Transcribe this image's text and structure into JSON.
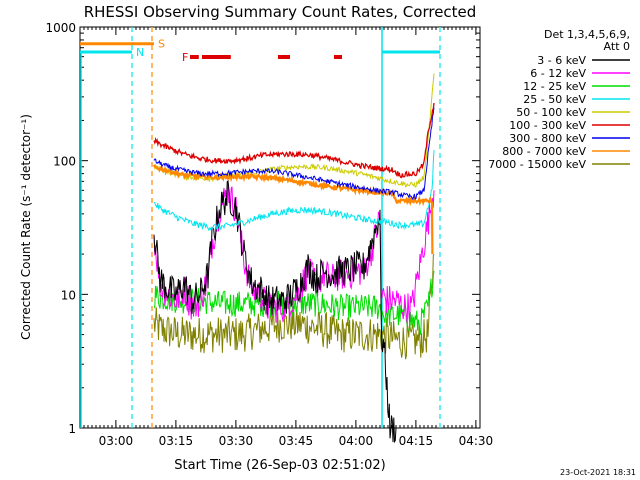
{
  "chart_data": {
    "type": "line",
    "title": "RHESSI Observing Summary Count Rates, Corrected",
    "xlabel": "Start Time (26-Sep-03 02:51:02)",
    "ylabel": "Corrected Count Rate (s⁻¹ detector⁻¹)",
    "yscale": "log",
    "ylim": [
      1,
      1000
    ],
    "xlim_minutes": [
      0,
      100
    ],
    "x_tick_labels": [
      "03:00",
      "03:15",
      "03:30",
      "03:45",
      "04:00",
      "04:15",
      "04:30"
    ],
    "x_ticks_minutes": [
      8.97,
      23.97,
      38.97,
      53.97,
      68.97,
      83.97,
      98.97
    ],
    "y_tick_labels": [
      "1",
      "10",
      "100",
      "1000"
    ],
    "y_ticks": [
      1,
      10,
      100,
      1000
    ],
    "legend_header": [
      "Det 1,3,4,5,6,9,",
      "Att 0"
    ],
    "legend_placement": "right",
    "timestamp": "23-Oct-2021 18:31",
    "colors": {
      "3-6": "#000000",
      "6-12": "#ff00ff",
      "12-25": "#00dd00",
      "25-50": "#00e5ee",
      "50-100": "#cccc00",
      "100-300": "#dd0000",
      "300-800": "#0000ee",
      "800-7000": "#ff8800",
      "7000-15000": "#808000"
    },
    "series": [
      {
        "name": "3 - 6 keV",
        "color_key": "3-6",
        "x": [
          18.5,
          20,
          22,
          24,
          26,
          28,
          30,
          32,
          33,
          35,
          37,
          39,
          41,
          43,
          45,
          47,
          49,
          51,
          53,
          55,
          57,
          59,
          61,
          63,
          65,
          67,
          69,
          71,
          73,
          75,
          75.3,
          76,
          77.5,
          79
        ],
        "y": [
          30,
          13,
          11,
          10,
          12,
          9,
          10,
          14,
          25,
          45,
          55,
          45,
          20,
          12,
          11,
          9,
          9,
          9,
          10,
          12,
          16,
          13,
          15,
          14,
          15,
          15,
          16,
          16,
          25,
          40,
          5,
          4,
          1,
          1
        ]
      },
      {
        "name": "6 - 12 keV",
        "color_key": "6-12",
        "x": [
          18.5,
          20,
          22,
          24,
          26,
          28,
          30,
          32,
          33,
          35,
          37,
          39,
          41,
          43,
          45,
          47,
          49,
          51,
          53,
          55,
          57,
          59,
          61,
          63,
          65,
          67,
          69,
          71,
          73,
          75,
          75.3,
          77,
          79,
          81,
          83,
          88.5
        ],
        "y": [
          28,
          12,
          10,
          9,
          11,
          8,
          9,
          13,
          24,
          44,
          60,
          43,
          18,
          11,
          10,
          8,
          8,
          8,
          9,
          11,
          15,
          12,
          14,
          13,
          14,
          14,
          15,
          15,
          22,
          38,
          10,
          9,
          9,
          8,
          8,
          60
        ]
      },
      {
        "name": "12 - 25 keV",
        "color_key": "12-25",
        "x": [
          18.5,
          20,
          25,
          30,
          35,
          40,
          45,
          50,
          55,
          60,
          65,
          70,
          75,
          76,
          80,
          85,
          87,
          88.5
        ],
        "y": [
          10,
          9.5,
          9,
          9,
          8.5,
          8.5,
          8.5,
          8.5,
          8.5,
          8.5,
          8,
          8,
          8,
          7,
          7,
          6,
          8,
          15
        ]
      },
      {
        "name": "25 - 50 keV",
        "color_key": "25-50",
        "x": [
          18.5,
          20,
          24,
          28,
          32,
          36,
          40,
          44,
          48,
          52,
          56,
          60,
          64,
          68,
          72,
          76,
          80,
          84,
          86,
          88,
          88.5
        ],
        "y": [
          48,
          44,
          38,
          34,
          32,
          32,
          34,
          37,
          40,
          42,
          43,
          42,
          40,
          38,
          36,
          35,
          33,
          33,
          34,
          60,
          120
        ]
      },
      {
        "name": "50 - 100 keV",
        "color_key": "50-100",
        "x": [
          18.5,
          22,
          26,
          30,
          34,
          38,
          42,
          46,
          50,
          54,
          58,
          62,
          66,
          70,
          74,
          78,
          82,
          84,
          86,
          87,
          88.5
        ],
        "y": [
          90,
          82,
          76,
          74,
          74,
          77,
          80,
          84,
          88,
          90,
          90,
          88,
          84,
          80,
          75,
          70,
          66,
          66,
          75,
          140,
          450
        ]
      },
      {
        "name": "100 - 300 keV",
        "color_key": "100-300",
        "x": [
          18.5,
          22,
          26,
          30,
          34,
          38,
          42,
          46,
          50,
          54,
          58,
          62,
          66,
          70,
          74,
          78,
          80,
          84,
          86,
          87,
          88.5
        ],
        "y": [
          140,
          125,
          112,
          104,
          100,
          100,
          104,
          110,
          112,
          112,
          110,
          104,
          98,
          92,
          88,
          86,
          78,
          80,
          95,
          160,
          270
        ]
      },
      {
        "name": "300 - 800 keV",
        "color_key": "300-800",
        "x": [
          18.5,
          22,
          26,
          30,
          34,
          38,
          42,
          46,
          50,
          54,
          58,
          62,
          66,
          70,
          74,
          78,
          82,
          84,
          86,
          87,
          88.5
        ],
        "y": [
          100,
          90,
          84,
          80,
          80,
          81,
          83,
          84,
          82,
          78,
          74,
          70,
          66,
          63,
          60,
          58,
          54,
          54,
          60,
          110,
          250
        ]
      },
      {
        "name": "800 - 7000 keV",
        "color_key": "800-7000",
        "x": [
          18.5,
          22,
          26,
          30,
          34,
          38,
          42,
          46,
          50,
          54,
          58,
          62,
          66,
          70,
          74,
          78,
          79,
          84,
          88,
          88.1
        ],
        "y": [
          90,
          84,
          78,
          76,
          75,
          76,
          76,
          75,
          73,
          70,
          67,
          64,
          62,
          60,
          58,
          57,
          50,
          50,
          50,
          20
        ]
      },
      {
        "name": "7000 - 15000 keV",
        "color_key": "7000-15000",
        "x": [
          18.5,
          20,
          25,
          30,
          35,
          40,
          45,
          50,
          55,
          60,
          65,
          70,
          75,
          80,
          85,
          87,
          88.5
        ],
        "y": [
          6,
          5.5,
          5,
          5,
          5,
          5,
          5.5,
          6,
          6,
          5.5,
          5,
          5,
          5,
          4.5,
          4.5,
          5,
          20
        ]
      }
    ],
    "annotations": {
      "orange_segment_label": "S",
      "cyan_segment_label": "N",
      "flare_label": "F",
      "orange_top_segment": {
        "x": [
          0,
          18.5
        ],
        "y": 750
      },
      "cyan_top_segments": [
        {
          "x": [
            0,
            13
          ],
          "y": 650
        },
        {
          "x": [
            75.5,
            90
          ],
          "y": 650
        }
      ],
      "flare_bars_minutes": [
        [
          27.5,
          29.7
        ],
        [
          30.5,
          37.7
        ],
        [
          49.5,
          52.5
        ],
        [
          63.5,
          65.5
        ]
      ],
      "vertical_cyan_solid_minutes": [
        75.5
      ],
      "vertical_cyan_dashed_minutes": [
        13,
        90
      ],
      "vertical_orange_dashed_minutes": [
        18
      ]
    }
  }
}
